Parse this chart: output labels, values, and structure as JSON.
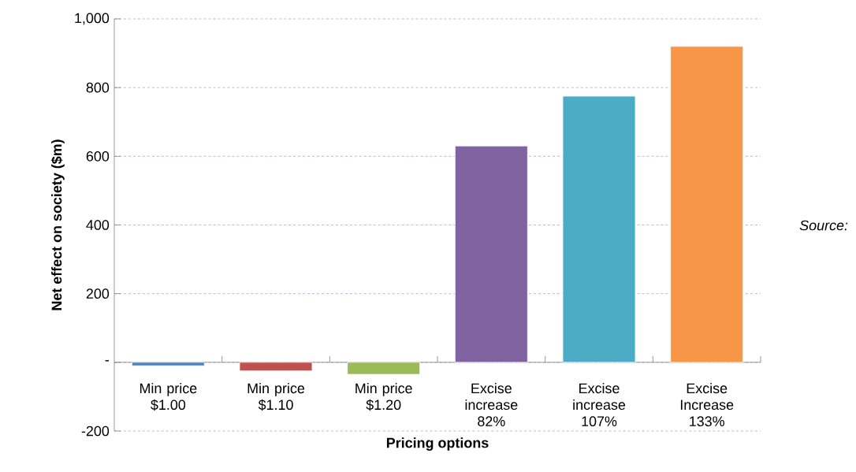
{
  "chart_data": {
    "type": "bar",
    "xlabel": "Pricing options",
    "ylabel": "Net effect on society ($m)",
    "categories": [
      "Min price $1.00",
      "Min price $1.10",
      "Min price $1.20",
      "Excise increase 82%",
      "Excise increase 107%",
      "Excise Increase 133%"
    ],
    "values": [
      -10,
      -25,
      -35,
      630,
      775,
      920
    ],
    "colors": [
      "#4f81bd",
      "#c0504d",
      "#9bbb59",
      "#8064a2",
      "#4bacc6",
      "#f79646"
    ],
    "ylim": [
      -200,
      1000
    ],
    "yticks": [
      -200,
      {
        "value": 0,
        "label": "-"
      },
      200,
      400,
      600,
      800,
      {
        "value": 1000,
        "label": "1,000"
      }
    ],
    "grid": "y",
    "annotations": [
      "Source:"
    ]
  }
}
